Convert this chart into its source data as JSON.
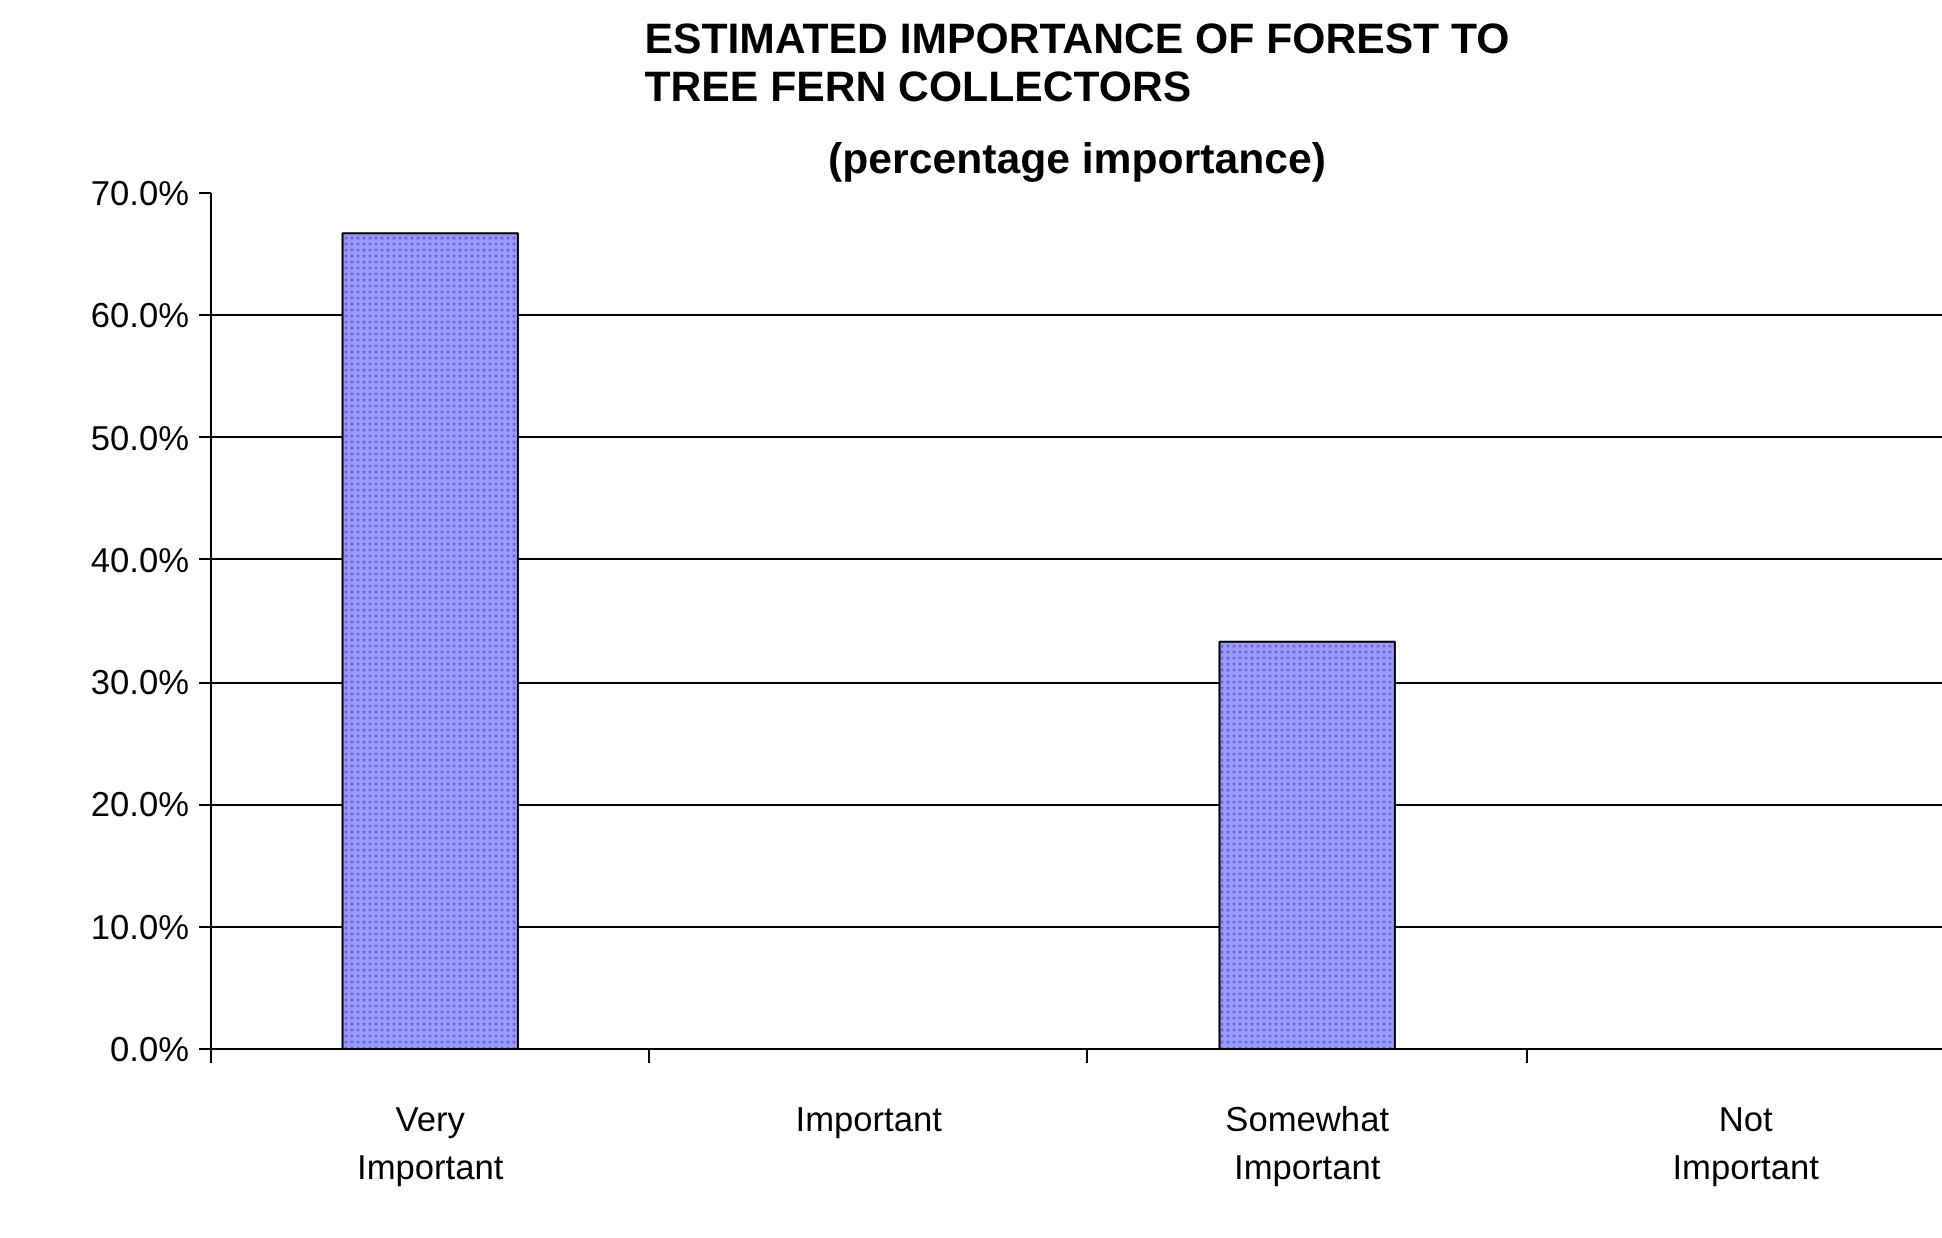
{
  "chart_data": {
    "type": "bar",
    "title": "ESTIMATED IMPORTANCE OF FOREST TO TREE FERN COLLECTORS",
    "subtitle": "(percentage importance)",
    "categories": [
      "Very Important",
      "Important",
      "Somewhat Important",
      "Not Important"
    ],
    "values": [
      66.7,
      0,
      33.3,
      0
    ],
    "color": "#9999ff",
    "ylim": [
      0,
      70
    ],
    "yticks": [
      {
        "value": 0,
        "label": "0.0%"
      },
      {
        "value": 10,
        "label": "10.0%"
      },
      {
        "value": 20,
        "label": "20.0%"
      },
      {
        "value": 30,
        "label": "30.0%"
      },
      {
        "value": 40,
        "label": "40.0%"
      },
      {
        "value": 50,
        "label": "50.0%"
      },
      {
        "value": 60,
        "label": "60.0%"
      },
      {
        "value": 70,
        "label": "70.0%"
      }
    ],
    "grid": "y"
  }
}
